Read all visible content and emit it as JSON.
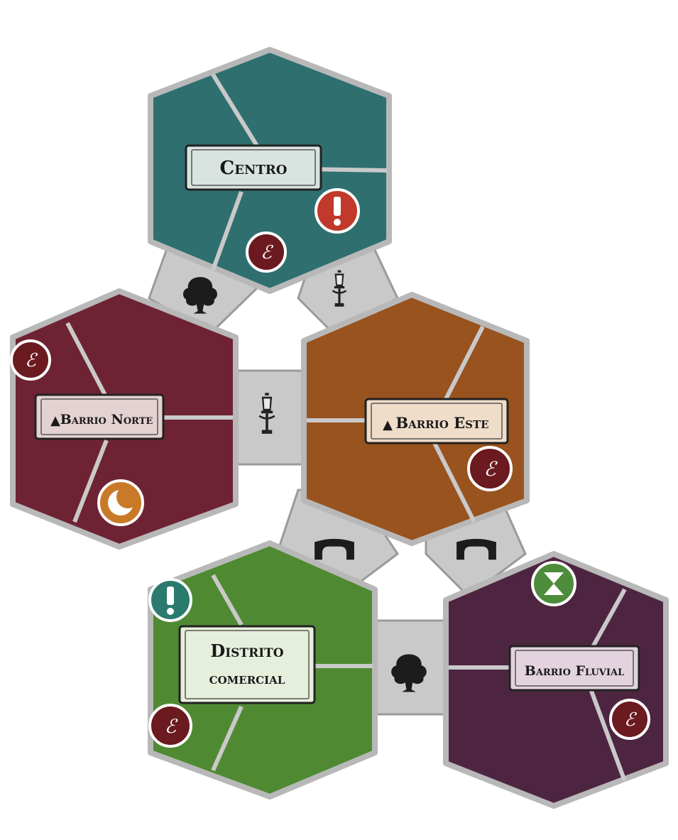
{
  "board": {
    "districts": [
      {
        "id": "centro",
        "lines": [
          "Centro"
        ],
        "color": "#2f6f70",
        "marker": false,
        "icons": [
          "alert-red",
          "seal"
        ]
      },
      {
        "id": "barrio-norte",
        "lines": [
          "Barrio Norte"
        ],
        "color": "#6e2334",
        "marker": true,
        "icons": [
          "seal",
          "moon"
        ]
      },
      {
        "id": "barrio-este",
        "lines": [
          "Barrio Este"
        ],
        "color": "#98531e",
        "marker": true,
        "icons": [
          "seal"
        ]
      },
      {
        "id": "distrito-comercial",
        "lines": [
          "Distrito",
          "comercial"
        ],
        "color": "#4f8a33",
        "marker": false,
        "icons": [
          "alert-teal",
          "seal"
        ]
      },
      {
        "id": "barrio-fluvial",
        "lines": [
          "Barrio Fluvial"
        ],
        "color": "#4e2540",
        "marker": false,
        "icons": [
          "hourglass",
          "seal"
        ]
      }
    ],
    "connectors": [
      {
        "id": "centro-norte",
        "icon": "tree"
      },
      {
        "id": "centro-este",
        "icon": "lamp"
      },
      {
        "id": "norte-este",
        "icon": "lamp"
      },
      {
        "id": "este-comercial",
        "icon": "bridge"
      },
      {
        "id": "este-fluvial",
        "icon": "bridge"
      },
      {
        "id": "comercial-fluvial",
        "icon": "tree"
      }
    ],
    "colors": {
      "road": "#c9c9c9",
      "road_edge": "#9a9a9a",
      "plaque": "#d9e3e0",
      "alert_red": "#c0392b",
      "alert_teal": "#2a7a6e",
      "seal": "#6b1a1f",
      "moon": "#c97a28",
      "hourglass": "#4c8c3a"
    }
  }
}
